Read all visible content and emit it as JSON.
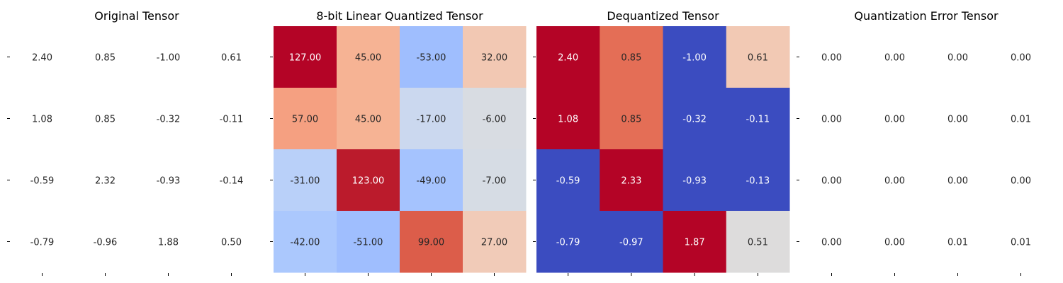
{
  "chart_data": [
    {
      "type": "heatmap",
      "title": "Original Tensor",
      "values": [
        [
          2.4,
          0.85,
          -1.0,
          0.61
        ],
        [
          1.08,
          0.85,
          -0.32,
          -0.11
        ],
        [
          -0.59,
          2.32,
          -0.93,
          -0.14
        ],
        [
          -0.79,
          -0.96,
          1.88,
          0.5
        ]
      ],
      "colored": false,
      "colormap": "coolwarm",
      "colorbar": false
    },
    {
      "type": "heatmap",
      "title": "8-bit Linear Quantized Tensor",
      "values": [
        [
          127.0,
          45.0,
          -53.0,
          32.0
        ],
        [
          57.0,
          45.0,
          -17.0,
          -6.0
        ],
        [
          -31.0,
          123.0,
          -49.0,
          -7.0
        ],
        [
          -42.0,
          -51.0,
          99.0,
          27.0
        ]
      ],
      "colored": true,
      "colormap": "coolwarm",
      "colorbar": false,
      "cell_colors": [
        [
          "#b40426",
          "#f6b394",
          "#9fbefe",
          "#f2c8b3"
        ],
        [
          "#f5a081",
          "#f6b394",
          "#cbd8ef",
          "#d8dce2"
        ],
        [
          "#b9d0f9",
          "#bb1b2c",
          "#a5c3fe",
          "#d6dce4"
        ],
        [
          "#abc8fd",
          "#9fbefe",
          "#dc5d4a",
          "#f1cbb8"
        ]
      ]
    },
    {
      "type": "heatmap",
      "title": "Dequantized Tensor",
      "values": [
        [
          2.4,
          0.85,
          -1.0,
          0.61
        ],
        [
          1.08,
          0.85,
          -0.32,
          -0.11
        ],
        [
          -0.59,
          2.33,
          -0.93,
          -0.13
        ],
        [
          -0.79,
          -0.97,
          1.87,
          0.51
        ]
      ],
      "colored": true,
      "colormap": "coolwarm",
      "colorbar": false,
      "cell_colors": [
        [
          "#b40426",
          "#e46e56",
          "#3b4cc0",
          "#f2c9b4"
        ],
        [
          "#b40426",
          "#e46e56",
          "#3b4cc0",
          "#3b4cc0"
        ],
        [
          "#3b4cc0",
          "#b40426",
          "#3b4cc0",
          "#3b4cc0"
        ],
        [
          "#3b4cc0",
          "#3b4cc0",
          "#b40426",
          "#dddcdc"
        ]
      ]
    },
    {
      "type": "heatmap",
      "title": "Quantization Error Tensor",
      "values": [
        [
          0.0,
          0.0,
          0.0,
          0.0
        ],
        [
          0.0,
          0.0,
          0.0,
          0.01
        ],
        [
          0.0,
          0.0,
          0.0,
          0.0
        ],
        [
          0.0,
          0.0,
          0.01,
          0.01
        ]
      ],
      "colored": false,
      "colormap": "coolwarm",
      "colorbar": false
    }
  ]
}
